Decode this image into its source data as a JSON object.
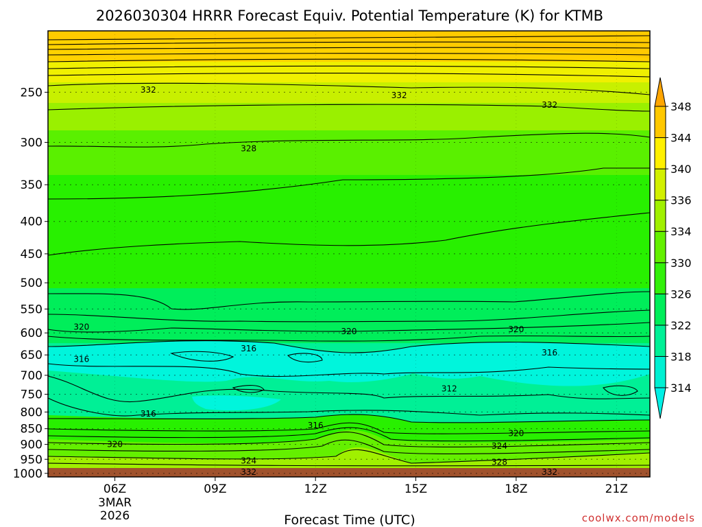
{
  "chart_data": {
    "type": "heatmap",
    "title": "2026030304 HRRR Forecast Equiv. Potential Temperature (K) for KTMB",
    "xlabel": "Forecast Time (UTC)",
    "credit": "coolwx.com/models",
    "x_ticks": [
      "06Z",
      "09Z",
      "12Z",
      "15Z",
      "18Z",
      "21Z"
    ],
    "x_date_lines": [
      "3MAR",
      "2026"
    ],
    "x_range_hours": [
      4,
      22
    ],
    "y_ticks": [
      250,
      300,
      350,
      400,
      450,
      500,
      550,
      600,
      650,
      700,
      750,
      800,
      850,
      900,
      950,
      1000
    ],
    "y_range_hPa": [
      1013,
      200
    ],
    "y_scale": "log (pressure)",
    "grid": "dotted horizontal at each pressure level",
    "surface_band_color": "#a0522d",
    "colorbar": {
      "levels": [
        314,
        318,
        322,
        326,
        330,
        334,
        336,
        340,
        344,
        348
      ],
      "colors": [
        "#00f0d2",
        "#00f096",
        "#00ee5a",
        "#32f00a",
        "#64f000",
        "#a0f000",
        "#d2f000",
        "#fff000",
        "#ffc800"
      ],
      "placement": "right"
    },
    "contour_labels": [
      {
        "text": "332",
        "hour": 7.0,
        "hPa": 248
      },
      {
        "text": "332",
        "hour": 14.5,
        "hPa": 253
      },
      {
        "text": "332",
        "hour": 19.0,
        "hPa": 262
      },
      {
        "text": "328",
        "hour": 10.0,
        "hPa": 307
      },
      {
        "text": "320",
        "hour": 5.0,
        "hPa": 587
      },
      {
        "text": "320",
        "hour": 13.0,
        "hPa": 597
      },
      {
        "text": "320",
        "hour": 18.0,
        "hPa": 592
      },
      {
        "text": "316",
        "hour": 5.0,
        "hPa": 660
      },
      {
        "text": "316",
        "hour": 10.0,
        "hPa": 635
      },
      {
        "text": "316",
        "hour": 19.0,
        "hPa": 645
      },
      {
        "text": "312",
        "hour": 16.0,
        "hPa": 735
      },
      {
        "text": "316",
        "hour": 7.0,
        "hPa": 805
      },
      {
        "text": "316",
        "hour": 12.0,
        "hPa": 840
      },
      {
        "text": "320",
        "hour": 18.0,
        "hPa": 865
      },
      {
        "text": "320",
        "hour": 6.0,
        "hPa": 900
      },
      {
        "text": "324",
        "hour": 17.5,
        "hPa": 905
      },
      {
        "text": "324",
        "hour": 10.0,
        "hPa": 955
      },
      {
        "text": "328",
        "hour": 17.5,
        "hPa": 960
      },
      {
        "text": "332",
        "hour": 10.0,
        "hPa": 995
      },
      {
        "text": "332",
        "hour": 19.0,
        "hPa": 995
      }
    ]
  }
}
